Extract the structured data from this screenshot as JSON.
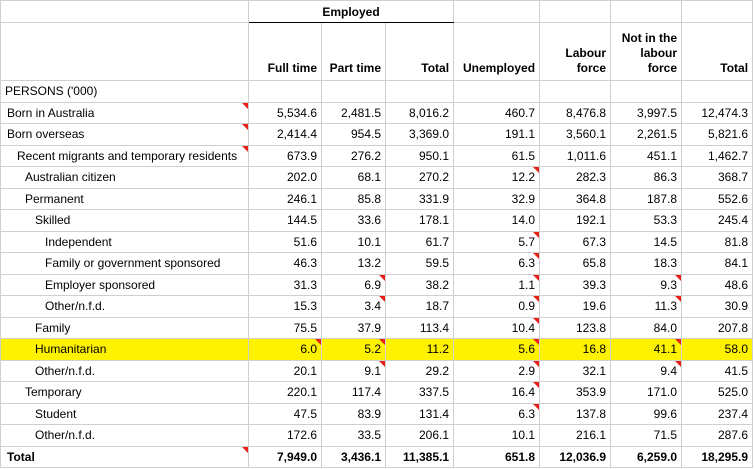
{
  "header": {
    "group_employed": "Employed",
    "columns": [
      "Full time",
      "Part time",
      "Total",
      "Unemployed",
      "Labour force",
      "Not in the labour force",
      "Total"
    ]
  },
  "section_label": "PERSONS ('000)",
  "rows": [
    {
      "label": "Born in Australia",
      "values": [
        "5,534.6",
        "2,481.5",
        "8,016.2",
        "460.7",
        "8,476.8",
        "3,997.5",
        "12,474.3"
      ],
      "flags": []
    },
    {
      "label": "Born overseas",
      "values": [
        "2,414.4",
        "954.5",
        "3,369.0",
        "191.1",
        "3,560.1",
        "2,261.5",
        "5,821.6"
      ],
      "flags": []
    },
    {
      "label": "Recent migrants and temporary residents",
      "values": [
        "673.9",
        "276.2",
        "950.1",
        "61.5",
        "1,011.6",
        "451.1",
        "1,462.7"
      ],
      "flags": []
    },
    {
      "label": "Australian citizen",
      "values": [
        "202.0",
        "68.1",
        "270.2",
        "12.2",
        "282.3",
        "86.3",
        "368.7"
      ],
      "flags": [
        3
      ]
    },
    {
      "label": "Permanent",
      "values": [
        "246.1",
        "85.8",
        "331.9",
        "32.9",
        "364.8",
        "187.8",
        "552.6"
      ],
      "flags": []
    },
    {
      "label": "Skilled",
      "values": [
        "144.5",
        "33.6",
        "178.1",
        "14.0",
        "192.1",
        "53.3",
        "245.4"
      ],
      "flags": []
    },
    {
      "label": "Independent",
      "values": [
        "51.6",
        "10.1",
        "61.7",
        "5.7",
        "67.3",
        "14.5",
        "81.8"
      ],
      "flags": [
        3
      ]
    },
    {
      "label": "Family or government sponsored",
      "values": [
        "46.3",
        "13.2",
        "59.5",
        "6.3",
        "65.8",
        "18.3",
        "84.1"
      ],
      "flags": [
        3
      ]
    },
    {
      "label": "Employer sponsored",
      "values": [
        "31.3",
        "6.9",
        "38.2",
        "1.1",
        "39.3",
        "9.3",
        "48.6"
      ],
      "flags": [
        1,
        3,
        5
      ]
    },
    {
      "label": "Other/n.f.d.",
      "values": [
        "15.3",
        "3.4",
        "18.7",
        "0.9",
        "19.6",
        "11.3",
        "30.9"
      ],
      "flags": [
        1,
        3,
        5
      ]
    },
    {
      "label": "Family",
      "values": [
        "75.5",
        "37.9",
        "113.4",
        "10.4",
        "123.8",
        "84.0",
        "207.8"
      ],
      "flags": [
        3
      ]
    },
    {
      "label": "Humanitarian",
      "values": [
        "6.0",
        "5.2",
        "11.2",
        "5.6",
        "16.8",
        "41.1",
        "58.0"
      ],
      "flags": [
        0,
        1,
        3,
        5
      ]
    },
    {
      "label": "Other/n.f.d.",
      "values": [
        "20.1",
        "9.1",
        "29.2",
        "2.9",
        "32.1",
        "9.4",
        "41.5"
      ],
      "flags": [
        1,
        3,
        5
      ]
    },
    {
      "label": "Temporary",
      "values": [
        "220.1",
        "117.4",
        "337.5",
        "16.4",
        "353.9",
        "171.0",
        "525.0"
      ],
      "flags": [
        3
      ]
    },
    {
      "label": "Student",
      "values": [
        "47.5",
        "83.9",
        "131.4",
        "6.3",
        "137.8",
        "99.6",
        "237.4"
      ],
      "flags": [
        3
      ]
    },
    {
      "label": "Other/n.f.d.",
      "values": [
        "172.6",
        "33.5",
        "206.1",
        "10.1",
        "216.1",
        "71.5",
        "287.6"
      ],
      "flags": []
    }
  ],
  "total": {
    "label": "Total",
    "values": [
      "7,949.0",
      "3,436.1",
      "11,385.1",
      "651.8",
      "12,036.9",
      "6,259.0",
      "18,295.9"
    ]
  },
  "highlight_color": "#fff200",
  "flag_color": "#e8211a"
}
